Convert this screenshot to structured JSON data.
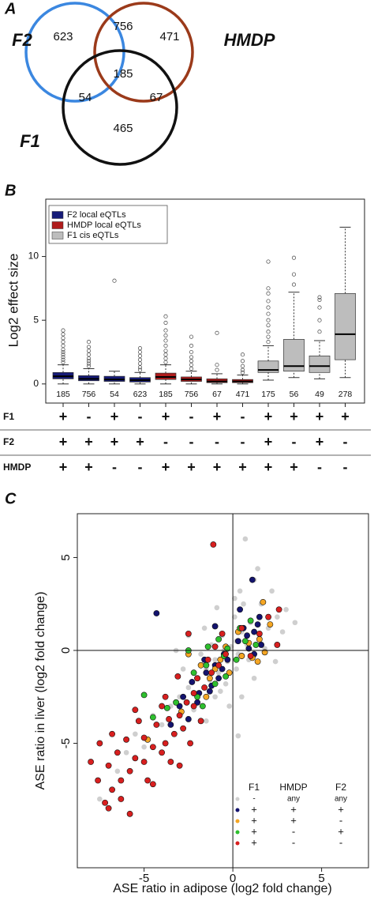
{
  "venn": {
    "label": "A",
    "sets": [
      {
        "name": "F2",
        "color": "#3b87e0"
      },
      {
        "name": "HMDP",
        "color": "#9b3a1a"
      },
      {
        "name": "F1",
        "color": "#111111"
      }
    ],
    "regions": [
      623,
      756,
      471,
      185,
      54,
      67,
      465
    ]
  },
  "chart_data": [
    {
      "type": "box",
      "label": "B",
      "ylabel": "Log2 effect size",
      "ylim": [
        -1.5,
        14.5
      ],
      "yticks": [
        0,
        5,
        10
      ],
      "series": [
        {
          "name": "F2 local eQTLs",
          "color": "#161b78",
          "boxes": [
            {
              "count": 185,
              "whisker_low": 0,
              "q1": 0.4,
              "median": 0.6,
              "q3": 0.9,
              "whisker_high": 1.5,
              "outliers": [
                1.7,
                1.9,
                2.1,
                2.3,
                2.5,
                2.7,
                3.0,
                3.3,
                3.6,
                3.9,
                4.2
              ]
            },
            {
              "count": 756,
              "whisker_low": 0,
              "q1": 0.25,
              "median": 0.4,
              "q3": 0.65,
              "whisker_high": 1.2,
              "outliers": [
                1.4,
                1.6,
                1.8,
                2.0,
                2.3,
                2.6,
                2.9,
                3.3
              ]
            },
            {
              "count": 54,
              "whisker_low": 0,
              "q1": 0.2,
              "median": 0.35,
              "q3": 0.6,
              "whisker_high": 1.0,
              "outliers": [
                8.1
              ]
            },
            {
              "count": 623,
              "whisker_low": 0,
              "q1": 0.15,
              "median": 0.3,
              "q3": 0.5,
              "whisker_high": 0.9,
              "outliers": [
                1.1,
                1.3,
                1.6,
                1.9,
                2.2,
                2.5,
                2.8
              ]
            }
          ]
        },
        {
          "name": "HMDP local eQTLs",
          "color": "#b01c1c",
          "boxes": [
            {
              "count": 185,
              "whisker_low": 0,
              "q1": 0.35,
              "median": 0.55,
              "q3": 0.85,
              "whisker_high": 1.5,
              "outliers": [
                1.7,
                2.0,
                2.3,
                2.6,
                3.0,
                3.4,
                3.8,
                4.2,
                4.8,
                5.3
              ]
            },
            {
              "count": 756,
              "whisker_low": 0,
              "q1": 0.2,
              "median": 0.35,
              "q3": 0.55,
              "whisker_high": 1.0,
              "outliers": [
                1.2,
                1.5,
                1.8,
                2.1,
                2.5,
                3.0,
                3.7
              ]
            },
            {
              "count": 67,
              "whisker_low": 0,
              "q1": 0.1,
              "median": 0.2,
              "q3": 0.4,
              "whisker_high": 0.8,
              "outliers": [
                1.1,
                1.5,
                4.0
              ]
            },
            {
              "count": 471,
              "whisker_low": 0,
              "q1": 0.1,
              "median": 0.2,
              "q3": 0.35,
              "whisker_high": 0.7,
              "outliers": [
                0.9,
                1.1,
                1.4,
                1.8,
                2.3
              ]
            }
          ]
        },
        {
          "name": "F1 cis eQTLs",
          "color": "#bdbdbd",
          "boxes": [
            {
              "count": 175,
              "whisker_low": 0.3,
              "q1": 0.9,
              "median": 1.1,
              "q3": 1.8,
              "whisker_high": 3.0,
              "outliers": [
                3.3,
                3.7,
                4.1,
                4.6,
                5.0,
                5.5,
                6.0,
                6.5,
                7.1,
                7.5,
                9.6
              ]
            },
            {
              "count": 56,
              "whisker_low": 0.5,
              "q1": 1.0,
              "median": 1.4,
              "q3": 3.5,
              "whisker_high": 7.2,
              "outliers": [
                7.8,
                8.6,
                9.9
              ]
            },
            {
              "count": 49,
              "whisker_low": 0.4,
              "q1": 0.9,
              "median": 1.4,
              "q3": 2.2,
              "whisker_high": 3.4,
              "outliers": [
                4.1,
                5.0,
                6.0,
                6.6,
                6.8
              ]
            },
            {
              "count": 278,
              "whisker_low": 0.5,
              "q1": 1.9,
              "median": 3.9,
              "q3": 7.1,
              "whisker_high": 12.3,
              "outliers": []
            }
          ]
        }
      ],
      "table": {
        "rows": [
          {
            "name": "F1",
            "color": "#111111",
            "signs": [
              "+",
              "-",
              "+",
              "-",
              "+",
              "-",
              "+",
              "-",
              "+",
              "+",
              "+",
              "+"
            ]
          },
          {
            "name": "F2",
            "color": "#2a4fa0",
            "signs": [
              "+",
              "+",
              "+",
              "+",
              "-",
              "-",
              "-",
              "-",
              "+",
              "-",
              "+",
              "-"
            ]
          },
          {
            "name": "HMDP",
            "color": "#7a1f3a",
            "signs": [
              "+",
              "+",
              "-",
              "-",
              "+",
              "+",
              "+",
              "+",
              "+",
              "+",
              "-",
              "-"
            ]
          }
        ]
      }
    },
    {
      "type": "scatter",
      "label": "C",
      "xlabel": "ASE ratio in adipose (log2 fold change)",
      "ylabel": "ASE ratio in liver (log2 fold change)",
      "xlim": [
        -8.76,
        7.64
      ],
      "ylim": [
        -11.7,
        7.36
      ],
      "xticks": [
        -5,
        0,
        5
      ],
      "yticks": [
        -5,
        0,
        5
      ],
      "zero_lines": true,
      "series": [
        {
          "color": "#cfcfcf",
          "x": [
            -1.5,
            -1,
            -0.5,
            0.2,
            0.5,
            1,
            -2,
            -2.5,
            -0.8,
            -0.3,
            0.3,
            0.8,
            1.5,
            2,
            2.5,
            3,
            -3,
            -3.5,
            -1.2,
            -0.6,
            0.1,
            0.6,
            0.4,
            0.7,
            1.2,
            -1.8,
            -2.2,
            -1,
            -0.4,
            0.2,
            0.9,
            1.8,
            2.8,
            3.5,
            -4,
            -4.5,
            -5,
            -1.5,
            -0.2,
            0.3,
            -2.8,
            -3.2,
            -1.6,
            -0.9,
            0.1,
            1.6,
            2.2,
            1.4,
            -2.5,
            -7.5,
            -6.5,
            -6,
            -5.5,
            -2,
            -0.7,
            0.5,
            1.2,
            2.4,
            -1.3,
            -0.1
          ],
          "y": [
            -1,
            -0.5,
            0,
            0.5,
            1,
            1.5,
            -1.5,
            -2,
            -1.2,
            -0.6,
            -0.2,
            0.3,
            0.8,
            1.2,
            1.8,
            2.2,
            -2.5,
            -3,
            0.3,
            0.8,
            1.8,
            2.5,
            3.2,
            6,
            3.8,
            -0.2,
            -3.2,
            -2.5,
            -1.8,
            -1,
            -0.5,
            0.1,
            1,
            1.5,
            -4,
            -3.5,
            -5.2,
            -3.8,
            -3,
            -4.6,
            -1,
            0,
            1.2,
            2.3,
            2.8,
            2.5,
            3.2,
            4.4,
            0.8,
            -8,
            -6.5,
            -5.5,
            -4.5,
            -2.8,
            -2.2,
            -2.5,
            -1.5,
            -0.6,
            -1.6,
            0.2
          ]
        },
        {
          "color": "#13136e",
          "x": [
            -2.5,
            -2,
            -1.5,
            -1,
            -0.5,
            0.3,
            0.8,
            1.2,
            1.5,
            1.6,
            1.2,
            0.5,
            -0.8,
            -1.3,
            -2.3,
            -3,
            -3.5,
            -1,
            0.4,
            1.1,
            -1.6,
            -0.3,
            0.9,
            1.4,
            -1.9,
            -2.8,
            -0.6,
            0.6,
            -4.3,
            -1.2
          ],
          "y": [
            -3.7,
            -2.8,
            -1.2,
            -0.8,
            -0.2,
            0.5,
            0.8,
            1,
            1.8,
            0.3,
            -0.2,
            -0.3,
            -1.5,
            -2.2,
            -1.7,
            -3,
            -4,
            1.3,
            2.2,
            3.8,
            -0.5,
            -0.5,
            0.1,
            1.4,
            -2.3,
            -2.5,
            -1,
            1.2,
            2,
            -1.9
          ]
        },
        {
          "color": "#f5a623",
          "x": [
            -2.5,
            -1.3,
            -0.7,
            -0.4,
            0.5,
            1.5,
            1.8,
            1.4,
            0.9,
            -1.5,
            -2,
            -1,
            2.1,
            1.7,
            0.3,
            -2.9,
            -0.2,
            1.1,
            -1.8,
            -4.8
          ],
          "y": [
            -0.2,
            -1.5,
            -0.5,
            0.2,
            -0.3,
            0.6,
            -0.1,
            -0.6,
            0.4,
            -2.5,
            -1.5,
            -1,
            1.4,
            2.6,
            1,
            -3.3,
            -1.2,
            -0.4,
            -0.8,
            -4.8
          ]
        },
        {
          "color": "#2ec02e",
          "x": [
            -2.5,
            -1.5,
            -1,
            -0.5,
            -0.3,
            0.2,
            0.7,
            1,
            -2,
            -3.2,
            -4.5,
            -0.8,
            -1.4,
            -2.2,
            0.4,
            -1.7,
            -0.4,
            -3.7,
            1.3,
            -5
          ],
          "y": [
            0,
            -0.8,
            -1.8,
            -0.3,
            0.1,
            -0.5,
            0.5,
            1.6,
            -2.5,
            -2.8,
            -3.6,
            0.6,
            0.2,
            -1.2,
            1.2,
            -3,
            -1.4,
            -3.1,
            0.3,
            -2.4
          ]
        },
        {
          "color": "#d81f1f",
          "x": [
            -8,
            -7.6,
            -7.2,
            -7,
            -6.8,
            -6.5,
            -6.3,
            -6,
            -5.8,
            -5.5,
            -5.3,
            -5,
            -4.8,
            -4.5,
            -4.3,
            -4,
            -3.8,
            -3.6,
            -3.5,
            -3.3,
            -3,
            -2.8,
            -2.6,
            -2.4,
            -2.2,
            -2,
            -1.8,
            -1.6,
            -1.4,
            -1.2,
            -1,
            -0.8,
            -0.6,
            -0.4,
            0.5,
            1,
            1.5,
            2,
            2.6,
            2.5,
            -1.1,
            -3.1,
            -2.5,
            -5.5,
            -4,
            -6.8,
            -7.5,
            -5.8,
            -6.3,
            -3.8,
            -7,
            -5,
            -4.5,
            -2.2,
            -3
          ],
          "y": [
            -6,
            -7,
            -8.2,
            -6.2,
            -7.5,
            -5.5,
            -8,
            -4.8,
            -6.5,
            -5.8,
            -3.8,
            -4.7,
            -7,
            -5.2,
            -4,
            -5.5,
            -2.5,
            -3.7,
            -6,
            -4.5,
            -3.5,
            -4.2,
            -2.8,
            -5,
            -3,
            -1.5,
            -3.8,
            -2,
            -0.5,
            -1.2,
            0.2,
            -0.8,
            0.9,
            -0.2,
            1.2,
            -0.3,
            0.9,
            1.8,
            2.2,
            0.3,
            5.7,
            -1.4,
            0.9,
            -3.2,
            -3,
            -4.5,
            -5,
            -8.8,
            -7,
            -5,
            -8.5,
            -6,
            -7.2,
            -2.3,
            -6.2
          ]
        }
      ],
      "legend": {
        "headers": [
          "F1",
          "HMDP",
          "F2"
        ],
        "signs": [
          [
            "-",
            "any",
            "any"
          ],
          [
            "+",
            "+",
            "+"
          ],
          [
            "+",
            "+",
            "-"
          ],
          [
            "+",
            "-",
            "+"
          ],
          [
            "+",
            "-",
            "-"
          ]
        ]
      }
    }
  ]
}
